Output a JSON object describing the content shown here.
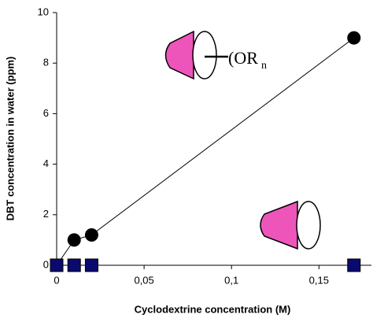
{
  "chart_data": {
    "type": "line",
    "x_label": "Cyclodextrine concentration (M)",
    "y_label": "DBT concentration in water (ppm)",
    "annotation": "(OR",
    "annotation_sub": "n",
    "xlim": [
      0,
      0.18
    ],
    "ylim": [
      0,
      10
    ],
    "xticks": [
      0,
      {
        "value": 0.05,
        "label": "0,05"
      },
      {
        "value": 0.1,
        "label": "0,1"
      },
      {
        "value": 0.15,
        "label": "0,15"
      }
    ],
    "yticks": [
      0,
      2,
      4,
      6,
      8,
      10
    ],
    "series": [
      {
        "color": "#000000",
        "marker": "circle",
        "line": true,
        "x": [
          0,
          0.01,
          0.02,
          0.17
        ],
        "values": [
          0,
          1.0,
          1.2,
          9.0
        ]
      },
      {
        "color": "#0a0a6e",
        "marker": "square",
        "line": false,
        "x": [
          0,
          0.01,
          0.02,
          0.17
        ],
        "values": [
          0,
          0,
          0,
          0
        ]
      }
    ]
  }
}
